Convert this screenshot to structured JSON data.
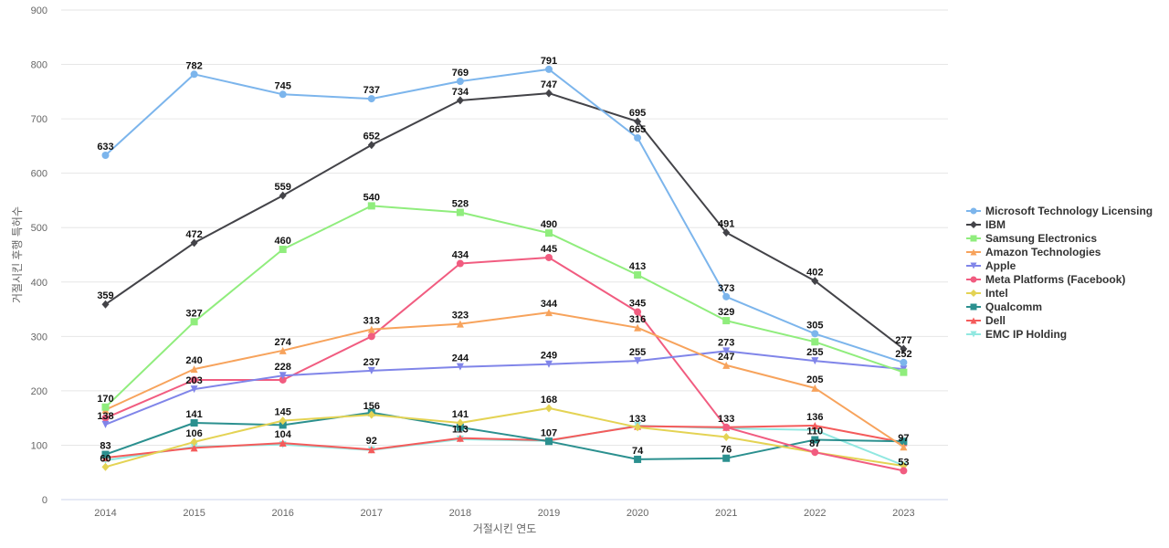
{
  "chart_data": {
    "type": "line",
    "title": "",
    "xlabel": "거절시킨 연도",
    "ylabel": "거절시킨 후행 특허수",
    "x": [
      "2014",
      "2015",
      "2016",
      "2017",
      "2018",
      "2019",
      "2020",
      "2021",
      "2022",
      "2023"
    ],
    "ylim": [
      0,
      900
    ],
    "yticks": [
      0,
      100,
      200,
      300,
      400,
      500,
      600,
      700,
      800,
      900
    ],
    "grid": true,
    "legend_position": "right",
    "series": [
      {
        "name": "Microsoft Technology Licensing",
        "color": "#7cb5ec",
        "marker": "circle",
        "values": [
          633,
          782,
          745,
          737,
          769,
          791,
          665,
          373,
          305,
          252
        ],
        "labels": [
          "633",
          "782",
          "745",
          "737",
          "769",
          "791",
          "665",
          "373",
          "305",
          "252"
        ]
      },
      {
        "name": "IBM",
        "color": "#434348",
        "marker": "diamond",
        "values": [
          359,
          472,
          559,
          652,
          734,
          747,
          695,
          491,
          402,
          277
        ],
        "labels": [
          "359",
          "472",
          "559",
          "652",
          "734",
          "747",
          "695",
          "491",
          "402",
          "277"
        ]
      },
      {
        "name": "Samsung Electronics",
        "color": "#90ed7d",
        "marker": "square",
        "values": [
          170,
          327,
          460,
          540,
          528,
          490,
          413,
          329,
          290,
          234
        ],
        "labels": [
          "170",
          "327",
          "460",
          "540",
          "528",
          "490",
          "413",
          "329",
          "",
          ""
        ]
      },
      {
        "name": "Amazon Technologies",
        "color": "#f7a35c",
        "marker": "triangle",
        "values": [
          165,
          240,
          274,
          313,
          323,
          344,
          316,
          247,
          205,
          97
        ],
        "labels": [
          "",
          "240",
          "274",
          "313",
          "323",
          "344",
          "316",
          "247",
          "205",
          "97"
        ]
      },
      {
        "name": "Apple",
        "color": "#8085e9",
        "marker": "triangle-down",
        "values": [
          138,
          203,
          228,
          237,
          244,
          249,
          255,
          273,
          255,
          240
        ],
        "labels": [
          "138",
          "203",
          "228",
          "237",
          "244",
          "249",
          "255",
          "273",
          "255",
          ""
        ]
      },
      {
        "name": "Meta Platforms (Facebook)",
        "color": "#f15c80",
        "marker": "circle",
        "values": [
          150,
          220,
          220,
          300,
          434,
          445,
          345,
          133,
          87,
          53
        ],
        "labels": [
          "",
          "",
          "",
          "",
          "434",
          "445",
          "345",
          "133",
          "87",
          "53"
        ]
      },
      {
        "name": "Intel",
        "color": "#e4d354",
        "marker": "diamond",
        "values": [
          60,
          106,
          145,
          156,
          141,
          168,
          133,
          115,
          87,
          62
        ],
        "labels": [
          "60",
          "106",
          "145",
          "156",
          "141",
          "168",
          "133",
          "",
          "",
          ""
        ]
      },
      {
        "name": "Qualcomm",
        "color": "#2b908f",
        "marker": "square",
        "values": [
          83,
          141,
          137,
          160,
          133,
          107,
          74,
          76,
          110,
          107
        ],
        "labels": [
          "83",
          "141",
          "",
          "",
          "",
          "107",
          "74",
          "76",
          "110",
          ""
        ]
      },
      {
        "name": "Dell",
        "color": "#f45b5b",
        "marker": "triangle",
        "values": [
          77,
          95,
          104,
          92,
          113,
          109,
          135,
          133,
          136,
          105
        ],
        "labels": [
          "",
          "",
          "104",
          "92",
          "113",
          "",
          "",
          "",
          "136",
          ""
        ]
      },
      {
        "name": "EMC IP Holding",
        "color": "#91e8e1",
        "marker": "triangle-down",
        "values": [
          72,
          97,
          101,
          91,
          111,
          108,
          136,
          131,
          128,
          63
        ],
        "labels": [
          "",
          "",
          "",
          "",
          "",
          "",
          "",
          "",
          "",
          ""
        ]
      }
    ]
  }
}
